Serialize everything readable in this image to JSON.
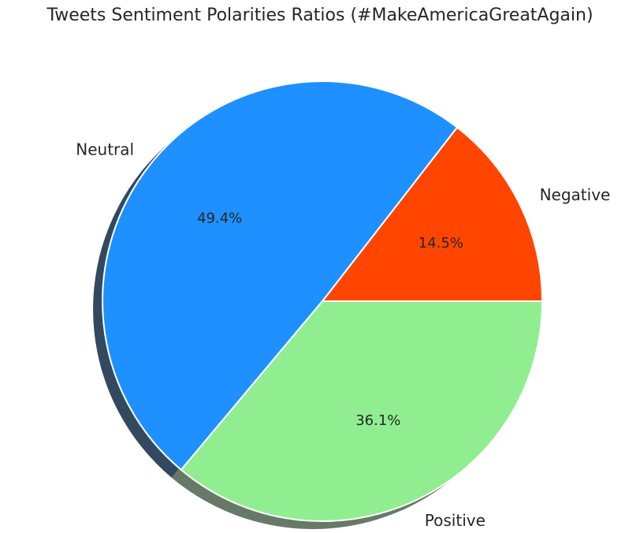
{
  "chart_data": {
    "type": "pie",
    "title": "Tweets Sentiment Polarities Ratios (#MakeAmericaGreatAgain)",
    "labels": [
      "Negative",
      "Neutral",
      "Positive"
    ],
    "values": [
      14.5,
      49.4,
      36.1
    ],
    "value_labels": [
      "14.5%",
      "49.4%",
      "36.1%"
    ],
    "colors": [
      "#ff4500",
      "#1e90ff",
      "#90ee90"
    ],
    "start_angle": 0,
    "direction": "counterclockwise",
    "shadow": true,
    "legend": "none"
  }
}
